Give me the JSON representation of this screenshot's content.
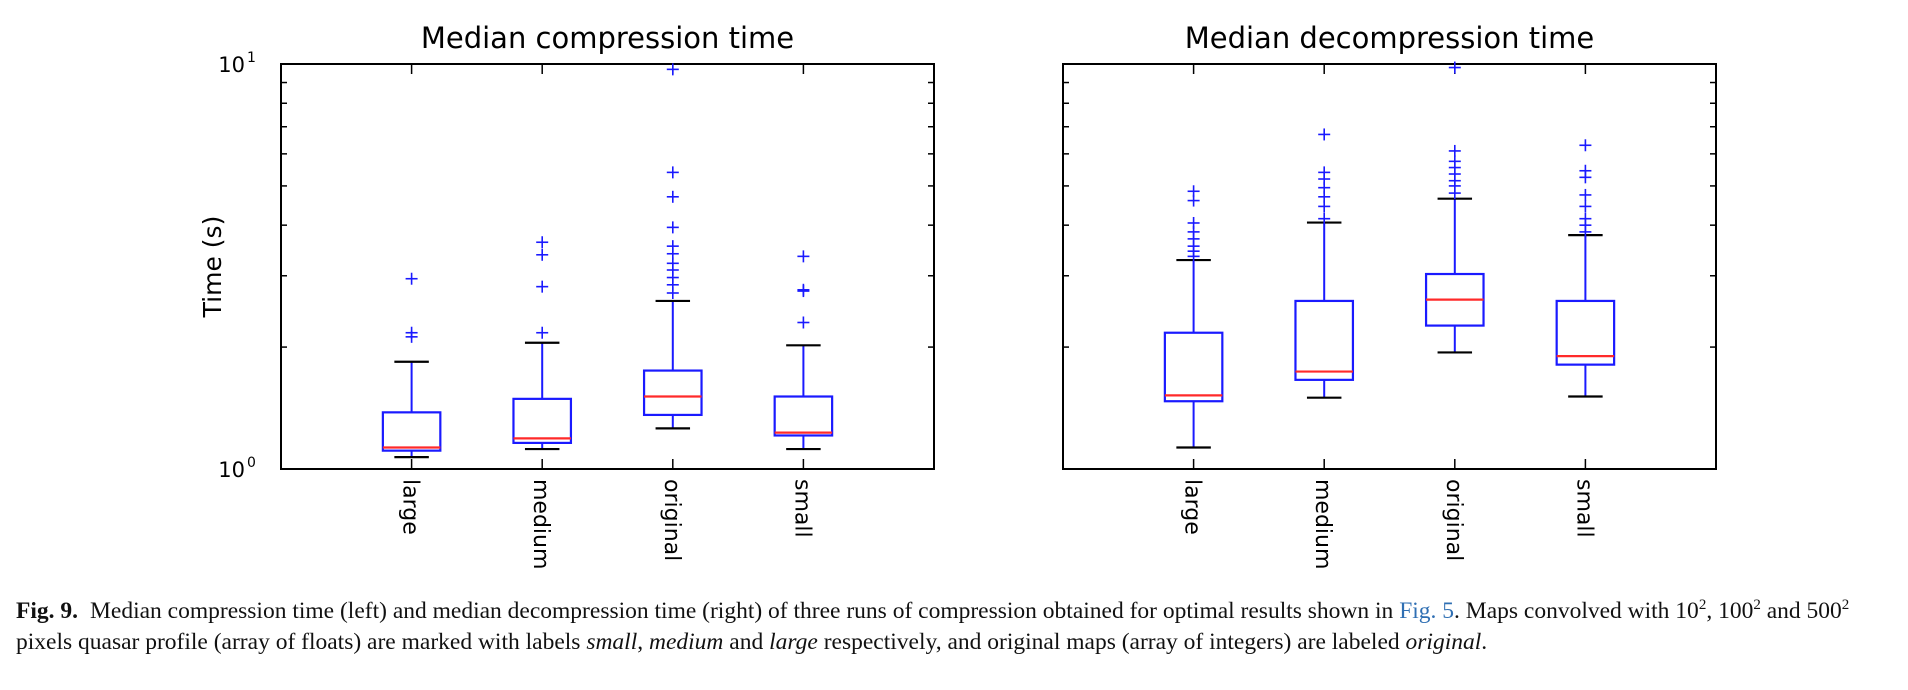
{
  "chart_data": [
    {
      "type": "box",
      "title": "Median compression time",
      "ylabel": "Time (s)",
      "yscale": "log",
      "ylim": [
        1,
        10
      ],
      "ytick_labels": {
        "base": "10",
        "lower_exp": "0",
        "upper_exp": "1"
      },
      "categories": [
        "large",
        "medium",
        "original",
        "small"
      ],
      "boxes": [
        {
          "category": "large",
          "whislo": 1.07,
          "q1": 1.11,
          "median": 1.13,
          "q3": 1.38,
          "whishi": 1.84,
          "fliers": [
            2.12,
            2.17,
            2.95
          ]
        },
        {
          "category": "medium",
          "whislo": 1.12,
          "q1": 1.16,
          "median": 1.19,
          "q3": 1.49,
          "whishi": 2.05,
          "fliers": [
            2.17,
            2.82,
            3.38,
            3.63
          ]
        },
        {
          "category": "original",
          "whislo": 1.26,
          "q1": 1.36,
          "median": 1.51,
          "q3": 1.75,
          "whishi": 2.6,
          "fliers": [
            2.72,
            2.85,
            2.97,
            3.1,
            3.22,
            3.4,
            3.55,
            3.95,
            4.7,
            5.4,
            9.7
          ]
        },
        {
          "category": "small",
          "whislo": 1.12,
          "q1": 1.21,
          "median": 1.23,
          "q3": 1.51,
          "whishi": 2.02,
          "fliers": [
            2.3,
            2.75,
            2.77,
            3.35
          ]
        }
      ]
    },
    {
      "type": "box",
      "title": "Median decompression time",
      "yscale": "log",
      "ylim": [
        1,
        10
      ],
      "categories": [
        "large",
        "medium",
        "original",
        "small"
      ],
      "boxes": [
        {
          "category": "large",
          "whislo": 1.13,
          "q1": 1.47,
          "median": 1.52,
          "q3": 2.17,
          "whishi": 3.28,
          "fliers": [
            3.35,
            3.45,
            3.55,
            3.7,
            3.85,
            4.05,
            4.6,
            4.85
          ]
        },
        {
          "category": "medium",
          "whislo": 1.5,
          "q1": 1.66,
          "median": 1.74,
          "q3": 2.6,
          "whishi": 4.06,
          "fliers": [
            4.15,
            4.45,
            4.7,
            4.95,
            5.2,
            5.4,
            6.7
          ]
        },
        {
          "category": "original",
          "whislo": 1.94,
          "q1": 2.26,
          "median": 2.62,
          "q3": 3.03,
          "whishi": 4.65,
          "fliers": [
            4.8,
            5.0,
            5.15,
            5.35,
            5.55,
            5.75,
            6.1,
            9.8
          ]
        },
        {
          "category": "small",
          "whislo": 1.51,
          "q1": 1.81,
          "median": 1.9,
          "q3": 2.6,
          "whishi": 3.78,
          "fliers": [
            3.85,
            4.0,
            4.15,
            4.45,
            4.75,
            5.25,
            5.45,
            6.3
          ]
        }
      ]
    }
  ],
  "colors": {
    "box": "#1a1aff",
    "median": "#ff2a2a",
    "whisker_cap": "#000000",
    "flier": "#1a1aff"
  },
  "caption": {
    "fig_label": "Fig. 9.",
    "parts": [
      {
        "text": "Median compression time (left) and median decompression time (right) of three runs of compression obtained for optimal results shown in "
      },
      {
        "text": "Fig. 5",
        "style": "link"
      },
      {
        "text": ". Maps convolved with 10"
      },
      {
        "text": "2",
        "style": "sup"
      },
      {
        "text": ", 100"
      },
      {
        "text": "2",
        "style": "sup"
      },
      {
        "text": " and 500"
      },
      {
        "text": "2",
        "style": "sup"
      },
      {
        "text": " pixels quasar profile (array of floats) are marked with labels "
      },
      {
        "text": "small",
        "style": "italic"
      },
      {
        "text": ", "
      },
      {
        "text": "medium",
        "style": "italic"
      },
      {
        "text": " and "
      },
      {
        "text": "large",
        "style": "italic"
      },
      {
        "text": " respectively, and original maps (array of integers) are labeled "
      },
      {
        "text": "original",
        "style": "italic"
      },
      {
        "text": "."
      }
    ]
  }
}
